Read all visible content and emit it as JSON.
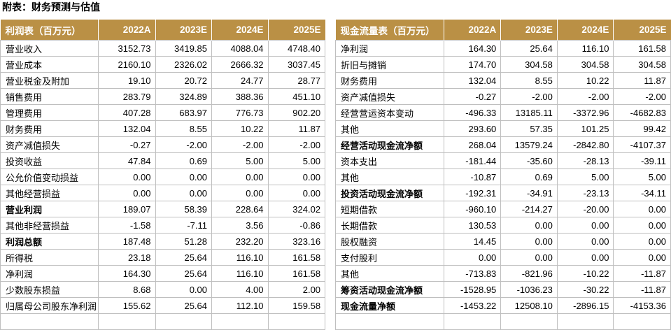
{
  "page_title": "附表：财务预测与估值",
  "colors": {
    "header_bg": "#BA9045",
    "header_text": "#FFFFFF",
    "grid_line": "#BFBFBF",
    "body_text": "#000000"
  },
  "income_statement": {
    "title": "利润表（百万元）",
    "columns": [
      "2022A",
      "2023E",
      "2024E",
      "2025E"
    ],
    "rows": [
      {
        "label": "营业收入",
        "bold": false,
        "values": [
          "3152.73",
          "3419.85",
          "4088.04",
          "4748.40"
        ]
      },
      {
        "label": "营业成本",
        "bold": false,
        "values": [
          "2160.10",
          "2326.02",
          "2666.32",
          "3037.45"
        ]
      },
      {
        "label": "营业税金及附加",
        "bold": false,
        "values": [
          "19.10",
          "20.72",
          "24.77",
          "28.77"
        ]
      },
      {
        "label": "销售费用",
        "bold": false,
        "values": [
          "283.79",
          "324.89",
          "388.36",
          "451.10"
        ]
      },
      {
        "label": "管理费用",
        "bold": false,
        "values": [
          "407.28",
          "683.97",
          "776.73",
          "902.20"
        ]
      },
      {
        "label": "财务费用",
        "bold": false,
        "values": [
          "132.04",
          "8.55",
          "10.22",
          "11.87"
        ]
      },
      {
        "label": "资产减值损失",
        "bold": false,
        "values": [
          "-0.27",
          "-2.00",
          "-2.00",
          "-2.00"
        ]
      },
      {
        "label": "投资收益",
        "bold": false,
        "values": [
          "47.84",
          "0.69",
          "5.00",
          "5.00"
        ]
      },
      {
        "label": "公允价值变动损益",
        "bold": false,
        "values": [
          "0.00",
          "0.00",
          "0.00",
          "0.00"
        ]
      },
      {
        "label": "其他经营损益",
        "bold": false,
        "values": [
          "0.00",
          "0.00",
          "0.00",
          "0.00"
        ]
      },
      {
        "label": "营业利润",
        "bold": true,
        "values": [
          "189.07",
          "58.39",
          "228.64",
          "324.02"
        ]
      },
      {
        "label": "其他非经营损益",
        "bold": false,
        "values": [
          "-1.58",
          "-7.11",
          "3.56",
          "-0.86"
        ]
      },
      {
        "label": "利润总额",
        "bold": true,
        "values": [
          "187.48",
          "51.28",
          "232.20",
          "323.16"
        ]
      },
      {
        "label": "所得税",
        "bold": false,
        "values": [
          "23.18",
          "25.64",
          "116.10",
          "161.58"
        ]
      },
      {
        "label": "净利润",
        "bold": false,
        "values": [
          "164.30",
          "25.64",
          "116.10",
          "161.58"
        ]
      },
      {
        "label": "少数股东损益",
        "bold": false,
        "values": [
          "8.68",
          "0.00",
          "4.00",
          "2.00"
        ]
      },
      {
        "label": "归属母公司股东净利润",
        "bold": false,
        "values": [
          "155.62",
          "25.64",
          "112.10",
          "159.58"
        ]
      }
    ],
    "trailing_empty_row": true
  },
  "cash_flow_statement": {
    "title": "现金流量表（百万元）",
    "columns": [
      "2022A",
      "2023E",
      "2024E",
      "2025E"
    ],
    "rows": [
      {
        "label": "净利润",
        "bold": false,
        "values": [
          "164.30",
          "25.64",
          "116.10",
          "161.58"
        ]
      },
      {
        "label": "折旧与摊销",
        "bold": false,
        "values": [
          "174.70",
          "304.58",
          "304.58",
          "304.58"
        ]
      },
      {
        "label": "财务费用",
        "bold": false,
        "values": [
          "132.04",
          "8.55",
          "10.22",
          "11.87"
        ]
      },
      {
        "label": "资产减值损失",
        "bold": false,
        "values": [
          "-0.27",
          "-2.00",
          "-2.00",
          "-2.00"
        ]
      },
      {
        "label": "经营营运资本变动",
        "bold": false,
        "values": [
          "-496.33",
          "13185.11",
          "-3372.96",
          "-4682.83"
        ]
      },
      {
        "label": "其他",
        "bold": false,
        "values": [
          "293.60",
          "57.35",
          "101.25",
          "99.42"
        ]
      },
      {
        "label": "经营活动现金流净额",
        "bold": true,
        "values": [
          "268.04",
          "13579.24",
          "-2842.80",
          "-4107.37"
        ]
      },
      {
        "label": "资本支出",
        "bold": false,
        "values": [
          "-181.44",
          "-35.60",
          "-28.13",
          "-39.11"
        ]
      },
      {
        "label": "其他",
        "bold": false,
        "values": [
          "-10.87",
          "0.69",
          "5.00",
          "5.00"
        ]
      },
      {
        "label": "投资活动现金流净额",
        "bold": true,
        "values": [
          "-192.31",
          "-34.91",
          "-23.13",
          "-34.11"
        ]
      },
      {
        "label": "短期借款",
        "bold": false,
        "values": [
          "-960.10",
          "-214.27",
          "-20.00",
          "0.00"
        ]
      },
      {
        "label": "长期借款",
        "bold": false,
        "values": [
          "130.53",
          "0.00",
          "0.00",
          "0.00"
        ]
      },
      {
        "label": "股权融资",
        "bold": false,
        "values": [
          "14.45",
          "0.00",
          "0.00",
          "0.00"
        ]
      },
      {
        "label": "支付股利",
        "bold": false,
        "values": [
          "0.00",
          "0.00",
          "0.00",
          "0.00"
        ]
      },
      {
        "label": "其他",
        "bold": false,
        "values": [
          "-713.83",
          "-821.96",
          "-10.22",
          "-11.87"
        ]
      },
      {
        "label": "筹资活动现金流净额",
        "bold": true,
        "values": [
          "-1528.95",
          "-1036.23",
          "-30.22",
          "-11.87"
        ]
      },
      {
        "label": "现金流量净额",
        "bold": true,
        "values": [
          "-1453.22",
          "12508.10",
          "-2896.15",
          "-4153.36"
        ]
      }
    ],
    "trailing_empty_row": true
  }
}
